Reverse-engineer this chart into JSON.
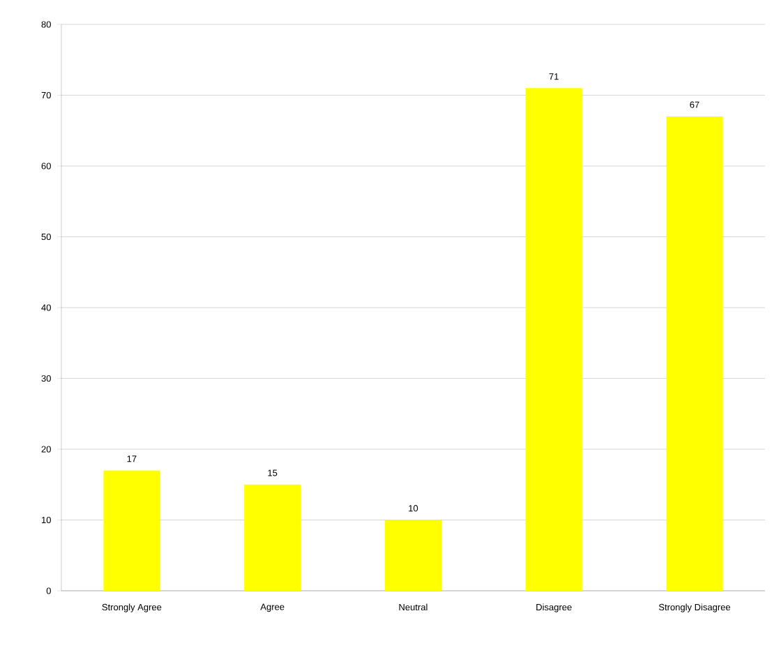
{
  "chart_data": {
    "type": "bar",
    "categories": [
      "Strongly Agree",
      "Agree",
      "Neutral",
      "Disagree",
      "Strongly Disagree"
    ],
    "values": [
      17,
      15,
      10,
      71,
      67
    ],
    "color": "#ffff00",
    "ylim": [
      0,
      80
    ],
    "yticks": [
      0,
      10,
      20,
      30,
      40,
      50,
      60,
      70,
      80
    ],
    "grid": "y",
    "data_labels": true
  }
}
